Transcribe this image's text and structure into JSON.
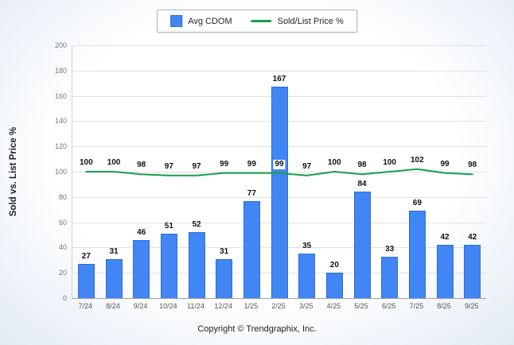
{
  "meta": {
    "copyright": "Copyright © Trendgraphix, Inc."
  },
  "legend": [
    {
      "label": "Avg CDOM",
      "type": "bar",
      "color": "#4285f4"
    },
    {
      "label": "Sold/List Price %",
      "type": "line",
      "color": "#15a049"
    }
  ],
  "chart_data": {
    "type": "bar+line",
    "categories": [
      "7/24",
      "8/24",
      "9/24",
      "10/24",
      "11/24",
      "12/24",
      "1/25",
      "2/25",
      "3/25",
      "4/25",
      "5/25",
      "6/25",
      "7/25",
      "8/25",
      "9/25"
    ],
    "series": [
      {
        "name": "Avg CDOM",
        "type": "bar",
        "color": "#4285f4",
        "values": [
          27,
          31,
          46,
          51,
          52,
          31,
          77,
          167,
          35,
          20,
          84,
          33,
          69,
          42,
          42
        ]
      },
      {
        "name": "Sold/List Price %",
        "type": "line",
        "color": "#15a049",
        "values": [
          100,
          100,
          98,
          97,
          97,
          99,
          99,
          99,
          97,
          100,
          98,
          100,
          102,
          99,
          98
        ]
      }
    ],
    "title": "",
    "xlabel": "",
    "ylabel": "Sold vs. List Price %",
    "ylim": [
      0,
      200
    ],
    "ytick_step": 20,
    "grid": true,
    "legend_position": "top"
  }
}
